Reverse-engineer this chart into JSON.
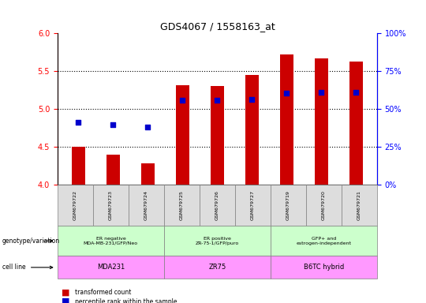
{
  "title": "GDS4067 / 1558163_at",
  "samples": [
    "GSM679722",
    "GSM679723",
    "GSM679724",
    "GSM679725",
    "GSM679726",
    "GSM679727",
    "GSM679719",
    "GSM679720",
    "GSM679721"
  ],
  "bar_values": [
    4.5,
    4.4,
    4.28,
    5.32,
    5.3,
    5.45,
    5.72,
    5.67,
    5.63
  ],
  "percentile_values": [
    4.83,
    4.79,
    4.76,
    5.12,
    5.12,
    5.13,
    5.21,
    5.22,
    5.22
  ],
  "bar_bottom": 4.0,
  "ylim_left": [
    4.0,
    6.0
  ],
  "ylim_right": [
    0,
    100
  ],
  "yticks_left": [
    4.0,
    4.5,
    5.0,
    5.5,
    6.0
  ],
  "yticks_right": [
    0,
    25,
    50,
    75,
    100
  ],
  "bar_color": "#cc0000",
  "percentile_color": "#0000cc",
  "groups": [
    {
      "label": "ER negative\nMDA-MB-231/GFP/Neo",
      "start": 0,
      "end": 3
    },
    {
      "label": "ER positive\nZR-75-1/GFP/puro",
      "start": 3,
      "end": 6
    },
    {
      "label": "GFP+ and\nestrogen-independent",
      "start": 6,
      "end": 9
    }
  ],
  "cell_lines": [
    {
      "label": "MDA231",
      "start": 0,
      "end": 3
    },
    {
      "label": "ZR75",
      "start": 3,
      "end": 6
    },
    {
      "label": "B6TC hybrid",
      "start": 6,
      "end": 9
    }
  ],
  "legend_transformed": "transformed count",
  "legend_percentile": "percentile rank within the sample",
  "geno_row_label": "genotype/variation",
  "cell_row_label": "cell line",
  "group_bg_color": "#ccffcc",
  "cell_bg_color": "#ff99ff",
  "sample_bg_color": "#dddddd"
}
